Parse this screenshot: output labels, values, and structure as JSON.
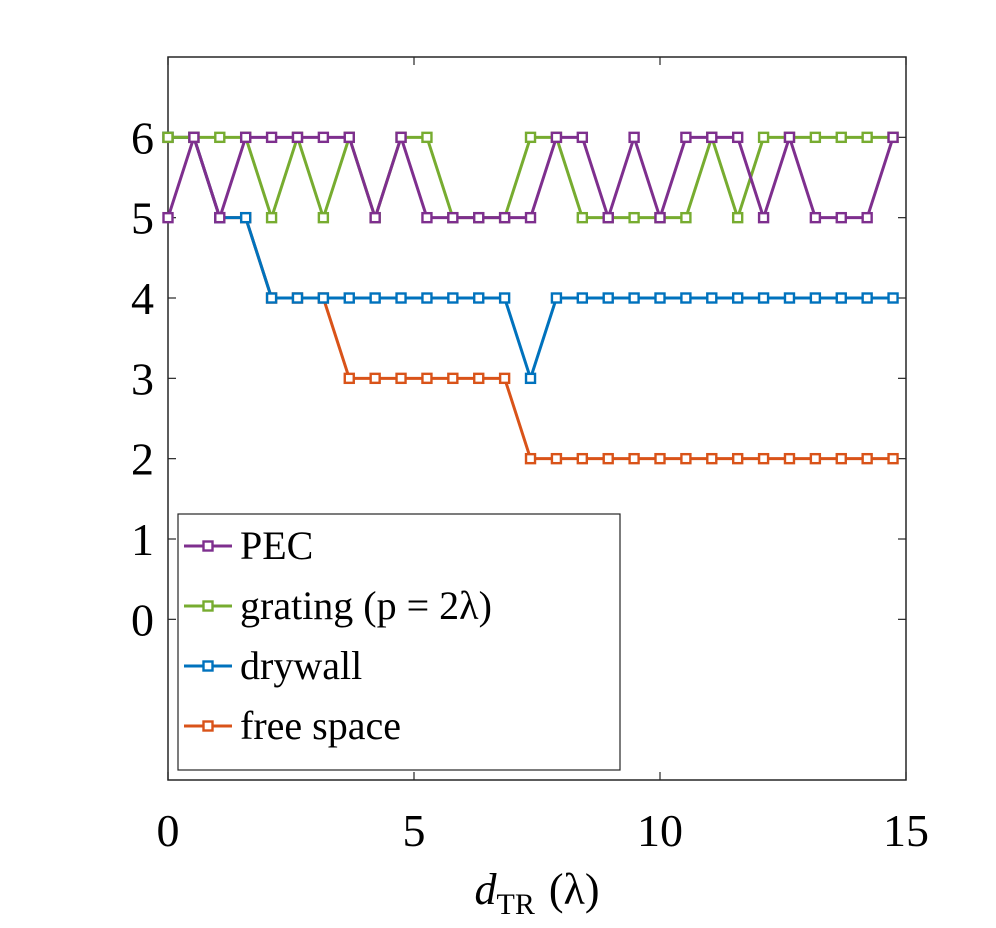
{
  "chart_data": {
    "type": "line",
    "title": "",
    "xlabel": "d_TR (λ)",
    "xlabel_parts": {
      "main": "d",
      "sub": "TR",
      "unit": "(λ)"
    },
    "ylabel": "",
    "xlim": [
      0,
      15
    ],
    "ylim": [
      -2,
      7
    ],
    "xticks": [
      0,
      5,
      10,
      15
    ],
    "xtick_labels": [
      "0",
      "5",
      "10",
      "15"
    ],
    "yticks": [
      0,
      1,
      2,
      3,
      4,
      5,
      6
    ],
    "ytick_labels": [
      "0",
      "1",
      "2",
      "3",
      "4",
      "5",
      "6"
    ],
    "grid": false,
    "legend_position": "bottom-left",
    "marker": "square",
    "x": [
      0.0,
      0.5263,
      1.0526,
      1.5789,
      2.1053,
      2.6316,
      3.1579,
      3.6842,
      4.2105,
      4.7368,
      5.2632,
      5.7895,
      6.3158,
      6.8421,
      7.3684,
      7.8947,
      8.4211,
      8.9474,
      9.4737,
      10.0,
      10.5263,
      11.0526,
      11.5789,
      12.1053,
      12.6316,
      13.1579,
      13.6842,
      14.2105,
      14.7368,
      15.2632
    ],
    "series": [
      {
        "name": "PEC",
        "color": "#7E2F8E",
        "values": [
          5,
          6,
          5,
          6,
          6,
          6,
          6,
          6,
          5,
          6,
          5,
          5,
          5,
          5,
          5,
          6,
          6,
          5,
          6,
          5,
          6,
          6,
          6,
          5,
          6,
          5,
          5,
          5,
          6,
          null
        ]
      },
      {
        "name": "grating (p = 2λ)",
        "color": "#77AC30",
        "values": [
          6,
          6,
          6,
          6,
          5,
          6,
          5,
          6,
          5,
          6,
          6,
          5,
          5,
          5,
          6,
          6,
          5,
          5,
          5,
          5,
          5,
          6,
          5,
          6,
          6,
          6,
          6,
          6,
          6,
          null
        ]
      },
      {
        "name": "drywall",
        "color": "#0072BD",
        "values": [
          6,
          6,
          5,
          5,
          4,
          4,
          4,
          4,
          4,
          4,
          4,
          4,
          4,
          4,
          3,
          4,
          4,
          4,
          4,
          4,
          4,
          4,
          4,
          4,
          4,
          4,
          4,
          4,
          4,
          null
        ]
      },
      {
        "name": "free space",
        "color": "#D95319",
        "values": [
          6,
          6,
          5,
          5,
          4,
          4,
          4,
          3,
          3,
          3,
          3,
          3,
          3,
          3,
          2,
          2,
          2,
          2,
          2,
          2,
          2,
          2,
          2,
          2,
          2,
          2,
          2,
          2,
          2,
          null
        ]
      }
    ]
  }
}
